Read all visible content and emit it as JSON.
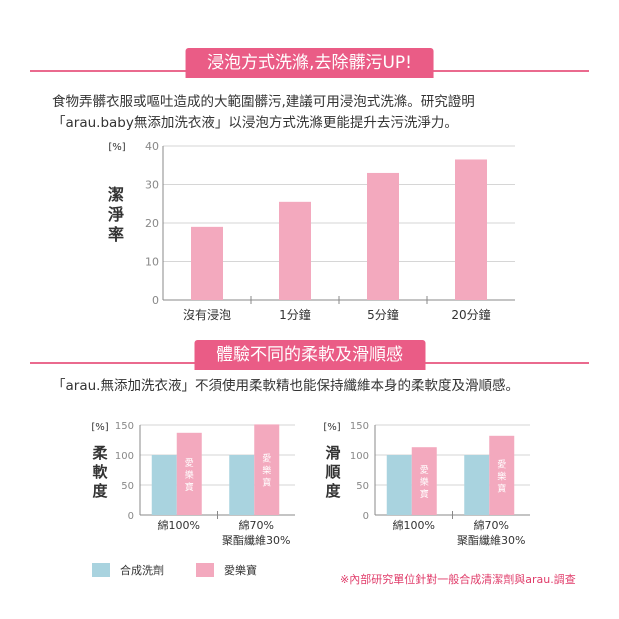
{
  "section1": {
    "banner": "浸泡方式洗滌,去除髒污UP!",
    "text_line1": "食物弄髒衣服或嘔吐造成的大範圍髒污,建議可用浸泡式洗滌。研究證明",
    "text_line2": "「arau.baby無添加洗衣液」以浸泡方式洗滌更能提升去污洗淨力。"
  },
  "section2": {
    "banner": "體驗不同的柔軟及滑順感",
    "text_line1": "「arau.無添加洗衣液」不須使用柔軟精也能保持纖維本身的柔軟度及滑順感。"
  },
  "colors": {
    "pink": "#f3a9be",
    "blue": "#a9d3df",
    "accent": "#ea5c86"
  },
  "legend": {
    "synthetic": "合成洗劑",
    "arau": "愛樂寶"
  },
  "footnote": "※內部研究單位針對一般合成清潔劑與arau.調查",
  "chart_data": [
    {
      "type": "bar",
      "unit": "[%]",
      "ylabel": "潔淨率",
      "ylim": [
        0,
        40
      ],
      "yticks": [
        0,
        10,
        20,
        30,
        40
      ],
      "categories": [
        "沒有浸泡",
        "1分鐘",
        "5分鐘",
        "20分鐘"
      ],
      "values": [
        19,
        25.5,
        33,
        36.5
      ],
      "grid": true
    },
    {
      "type": "bar",
      "unit": "[%]",
      "ylabel": "柔軟度",
      "ylim": [
        0,
        150
      ],
      "yticks": [
        0,
        50,
        100,
        150
      ],
      "categories": [
        "綿100%",
        "綿70%\n聚酯纖維30%"
      ],
      "series": [
        {
          "name": "合成洗劑",
          "values": [
            100,
            100
          ]
        },
        {
          "name": "愛樂寶",
          "values": [
            137,
            151
          ],
          "bar_label": "愛樂寶"
        }
      ],
      "grid": true
    },
    {
      "type": "bar",
      "unit": "[%]",
      "ylabel": "滑順度",
      "ylim": [
        0,
        150
      ],
      "yticks": [
        0,
        50,
        100,
        150
      ],
      "categories": [
        "綿100%",
        "綿70%\n聚酯纖維30%"
      ],
      "series": [
        {
          "name": "合成洗劑",
          "values": [
            100,
            100
          ]
        },
        {
          "name": "愛樂寶",
          "values": [
            113,
            132
          ],
          "bar_label": "愛樂寶"
        }
      ],
      "grid": true
    }
  ]
}
